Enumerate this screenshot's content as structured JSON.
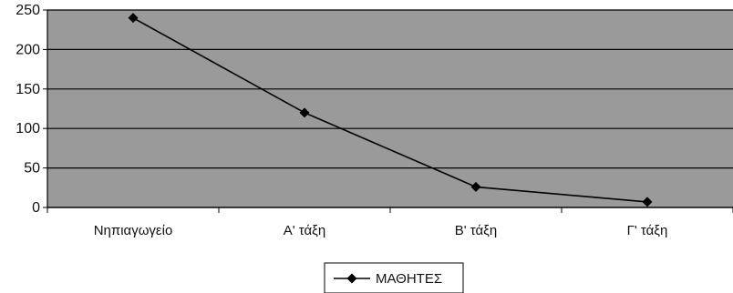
{
  "chart_data": {
    "type": "line",
    "categories": [
      "Νηπιαγωγείο",
      "Α' τάξη",
      "Β' τάξη",
      "Γ' τάξη"
    ],
    "series": [
      {
        "name": "ΜΑΘΗΤΕΣ",
        "values": [
          240,
          120,
          26,
          7
        ],
        "marker": "diamond"
      }
    ],
    "title": "",
    "xlabel": "",
    "ylabel": "",
    "ylim": [
      0,
      250
    ],
    "yticks": [
      0,
      50,
      100,
      150,
      200,
      250
    ],
    "grid": true,
    "legend_position": "bottom",
    "colors": {
      "plot_background": "#9a9a9a",
      "gridline": "#000000",
      "line": "#000000"
    }
  }
}
